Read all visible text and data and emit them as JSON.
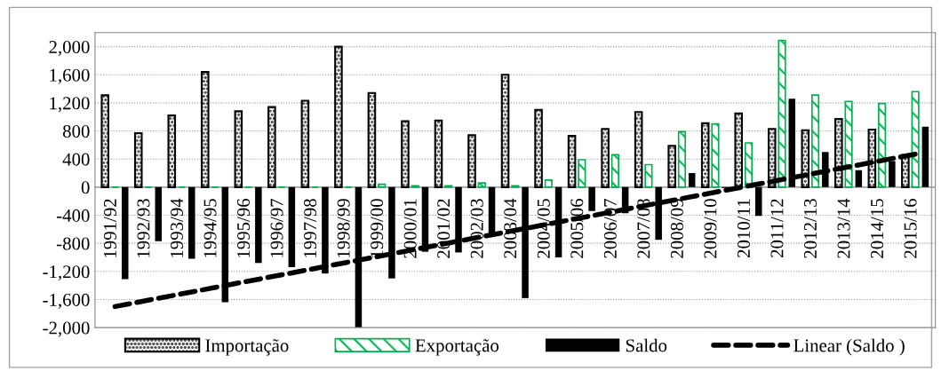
{
  "chart_data": {
    "type": "bar",
    "categories": [
      "1991/92",
      "1992/93",
      "1993/94",
      "1994/95",
      "1995/96",
      "1996/97",
      "1997/98",
      "1998/99",
      "1999/00",
      "2000/01",
      "2001/02",
      "2002/03",
      "2003/04",
      "2004/05",
      "2005/06",
      "2006/07",
      "2007/08",
      "2008/09",
      "2009/10",
      "2010/11",
      "2011/12",
      "2012/13",
      "2013/14",
      "2014/15",
      "2015/16"
    ],
    "series": [
      {
        "name": "Importação",
        "color": "#000000",
        "values": [
          1310,
          770,
          1020,
          1640,
          1080,
          1140,
          1230,
          2000,
          1340,
          940,
          950,
          740,
          1600,
          1100,
          730,
          830,
          1070,
          590,
          910,
          1050,
          830,
          810,
          970,
          820,
          460
        ]
      },
      {
        "name": "Exportação",
        "color": "#00b050",
        "values": [
          0,
          0,
          0,
          0,
          0,
          0,
          0,
          0,
          40,
          20,
          20,
          60,
          20,
          100,
          390,
          460,
          320,
          790,
          900,
          630,
          2090,
          1310,
          1220,
          1190,
          1360
        ]
      },
      {
        "name": "Saldo",
        "color": "#000000",
        "values": [
          -1310,
          -770,
          -1020,
          -1640,
          -1080,
          -1140,
          -1230,
          -2000,
          -1300,
          -920,
          -930,
          -680,
          -1580,
          -1000,
          -340,
          -370,
          -750,
          200,
          -10,
          -410,
          1260,
          500,
          240,
          370,
          860
        ]
      },
      {
        "name": "Linear (Saldo )",
        "type": "line",
        "color": "#000000",
        "line_style": "dashed",
        "x": [
          "1991/92",
          "2015/16"
        ],
        "values": [
          -1700,
          470
        ]
      }
    ],
    "ylim": [
      -2000,
      2200
    ],
    "yticks": [
      {
        "value": -2000,
        "label": "-2,000"
      },
      {
        "value": -1600,
        "label": "-1,600"
      },
      {
        "value": -1200,
        "label": "-1,200"
      },
      {
        "value": -800,
        "label": "-800"
      },
      {
        "value": -400,
        "label": "-400"
      },
      0,
      400,
      800,
      {
        "value": 1200,
        "label": "1,200"
      },
      {
        "value": 1600,
        "label": "1,600"
      },
      {
        "value": 2000,
        "label": "2,000"
      }
    ],
    "grid": "y",
    "legend": "bottom"
  }
}
